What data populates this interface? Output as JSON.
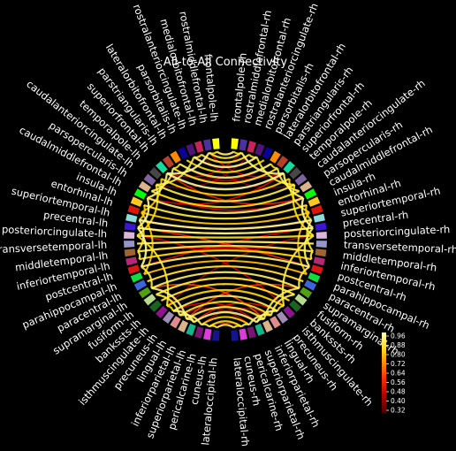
{
  "chart_data": {
    "type": "circular-connectivity",
    "title": "All-to-All Connectivity",
    "nodes_left": [
      "frontalpole-lh",
      "rostralmiddlefrontal-lh",
      "medialorbitofrontal-lh",
      "rostralanteriorcingulate-lh",
      "parsorbitalis-lh",
      "lateralorbitofrontal-lh",
      "parstriangularis-lh",
      "superiorfrontal-lh",
      "temporalpole-lh",
      "caudalanteriorcingulate-lh",
      "parsopercularis-lh",
      "caudalmiddlefrontal-lh",
      "insula-lh",
      "entorhinal-lh",
      "superiortemporal-lh",
      "precentral-lh",
      "posteriorcingulate-lh",
      "transversetemporal-lh",
      "middletemporal-lh",
      "inferiortemporal-lh",
      "postcentral-lh",
      "parahippocampal-lh",
      "paracentral-lh",
      "supramarginal-lh",
      "fusiform-lh",
      "bankssts-lh",
      "isthmuscingulate-lh",
      "precuneus-lh",
      "lingual-lh",
      "inferiorparietal-lh",
      "superiorparietal-lh",
      "pericalcarine-lh",
      "cuneus-lh",
      "lateraloccipital-lh"
    ],
    "nodes_right": [
      "frontalpole-rh",
      "rostralmiddlefrontal-rh",
      "medialorbitofrontal-rh",
      "rostralanteriorcingulate-rh",
      "parsorbitalis-rh",
      "lateralorbitofrontal-rh",
      "parstriangularis-rh",
      "superiorfrontal-rh",
      "temporalpole-rh",
      "caudalanteriorcingulate-rh",
      "parsopercularis-rh",
      "caudalmiddlefrontal-rh",
      "insula-rh",
      "entorhinal-rh",
      "superiortemporal-rh",
      "precentral-rh",
      "posteriorcingulate-rh",
      "transversetemporal-rh",
      "middletemporal-rh",
      "inferiortemporal-rh",
      "postcentral-rh",
      "parahippocampal-rh",
      "paracentral-rh",
      "supramarginal-rh",
      "fusiform-rh",
      "bankssts-rh",
      "isthmuscingulate-rh",
      "precuneus-rh",
      "lingual-rh",
      "inferiorparietal-rh",
      "superiorparietal-rh",
      "pericalcarine-rh",
      "cuneus-rh",
      "lateraloccipital-rh"
    ],
    "node_colors": [
      "#ffff00",
      "#4b32a0",
      "#c8235a",
      "#501478",
      "#0a0096",
      "#ff8c00",
      "#b44028",
      "#14dca0",
      "#464646",
      "#7d64a0",
      "#dcb48c",
      "#00ff00",
      "#ffc820",
      "#dc140a",
      "#8cdcdc",
      "#3c14dc",
      "#dcb4dc",
      "#9696c8",
      "#a06432",
      "#b42878",
      "#dc1414",
      "#14dc3c",
      "#3c64dc",
      "#50a014",
      "#b4dc8c",
      "#19641e",
      "#8c148c",
      "#a08cb4",
      "#e18c8c",
      "#dcb48c",
      "#14b48c",
      "#781478",
      "#dc3cdc",
      "#14148c"
    ],
    "colorbar": {
      "colormap": "hot",
      "ticks": [
        "0.96",
        "0.88",
        "0.80",
        "0.72",
        "0.64",
        "0.56",
        "0.48",
        "0.40",
        "0.32"
      ],
      "vmin": 0.3,
      "vmax": 1.0
    },
    "connections": [
      [
        0,
        34,
        0.92
      ],
      [
        1,
        35,
        0.9
      ],
      [
        2,
        36,
        0.88
      ],
      [
        3,
        37,
        0.95
      ],
      [
        4,
        38,
        0.86
      ],
      [
        5,
        39,
        0.93
      ],
      [
        6,
        40,
        0.89
      ],
      [
        7,
        41,
        0.97
      ],
      [
        8,
        42,
        0.84
      ],
      [
        9,
        43,
        0.91
      ],
      [
        10,
        44,
        0.87
      ],
      [
        11,
        45,
        0.94
      ],
      [
        12,
        46,
        0.9
      ],
      [
        13,
        47,
        0.83
      ],
      [
        14,
        48,
        0.96
      ],
      [
        15,
        49,
        0.95
      ],
      [
        16,
        50,
        0.88
      ],
      [
        17,
        51,
        0.92
      ],
      [
        18,
        52,
        0.91
      ],
      [
        19,
        53,
        0.86
      ],
      [
        20,
        54,
        0.94
      ],
      [
        21,
        55,
        0.82
      ],
      [
        22,
        56,
        0.89
      ],
      [
        23,
        57,
        0.93
      ],
      [
        24,
        58,
        0.9
      ],
      [
        25,
        59,
        0.87
      ],
      [
        26,
        60,
        0.85
      ],
      [
        27,
        61,
        0.92
      ],
      [
        28,
        62,
        0.88
      ],
      [
        29,
        63,
        0.91
      ],
      [
        30,
        64,
        0.95
      ],
      [
        31,
        65,
        0.84
      ],
      [
        32,
        66,
        0.86
      ],
      [
        33,
        67,
        0.9
      ],
      [
        1,
        7,
        0.96
      ],
      [
        7,
        11,
        0.93
      ],
      [
        11,
        15,
        0.95
      ],
      [
        15,
        20,
        0.97
      ],
      [
        20,
        23,
        0.9
      ],
      [
        23,
        29,
        0.94
      ],
      [
        29,
        30,
        0.92
      ],
      [
        30,
        27,
        0.95
      ],
      [
        27,
        26,
        0.86
      ],
      [
        18,
        19,
        0.91
      ],
      [
        14,
        18,
        0.88
      ],
      [
        24,
        28,
        0.9
      ],
      [
        28,
        31,
        0.93
      ],
      [
        31,
        32,
        0.91
      ],
      [
        32,
        33,
        0.89
      ],
      [
        5,
        6,
        0.87
      ],
      [
        6,
        10,
        0.92
      ],
      [
        2,
        3,
        0.88
      ],
      [
        3,
        9,
        0.9
      ],
      [
        9,
        16,
        0.85
      ],
      [
        16,
        26,
        0.89
      ],
      [
        0,
        1,
        0.86
      ],
      [
        12,
        14,
        0.84
      ],
      [
        13,
        21,
        0.83
      ],
      [
        8,
        13,
        0.82
      ],
      [
        35,
        41,
        0.95
      ],
      [
        41,
        45,
        0.94
      ],
      [
        45,
        49,
        0.96
      ],
      [
        49,
        54,
        0.93
      ],
      [
        54,
        57,
        0.91
      ],
      [
        57,
        63,
        0.92
      ],
      [
        63,
        64,
        0.93
      ],
      [
        64,
        61,
        0.94
      ],
      [
        61,
        60,
        0.87
      ],
      [
        52,
        53,
        0.9
      ],
      [
        48,
        52,
        0.89
      ],
      [
        58,
        62,
        0.91
      ],
      [
        62,
        65,
        0.92
      ],
      [
        65,
        66,
        0.9
      ],
      [
        66,
        67,
        0.88
      ],
      [
        39,
        40,
        0.86
      ],
      [
        40,
        44,
        0.91
      ],
      [
        36,
        37,
        0.89
      ],
      [
        37,
        43,
        0.88
      ],
      [
        43,
        50,
        0.86
      ],
      [
        50,
        60,
        0.9
      ],
      [
        34,
        35,
        0.85
      ],
      [
        46,
        48,
        0.84
      ],
      [
        47,
        55,
        0.82
      ],
      [
        42,
        47,
        0.83
      ],
      [
        15,
        49,
        0.78
      ],
      [
        7,
        45,
        0.62
      ],
      [
        11,
        41,
        0.58
      ],
      [
        23,
        63,
        0.66
      ],
      [
        29,
        57,
        0.64
      ],
      [
        30,
        61,
        0.6
      ],
      [
        27,
        64,
        0.57
      ],
      [
        20,
        49,
        0.55
      ],
      [
        15,
        54,
        0.63
      ],
      [
        18,
        53,
        0.52
      ],
      [
        19,
        52,
        0.5
      ],
      [
        33,
        66,
        0.59
      ],
      [
        32,
        67,
        0.54
      ],
      [
        28,
        65,
        0.48
      ],
      [
        31,
        62,
        0.46
      ],
      [
        1,
        41,
        0.51
      ],
      [
        7,
        35,
        0.49
      ],
      [
        17,
        51,
        0.7
      ],
      [
        14,
        48,
        0.68
      ],
      [
        24,
        58,
        0.61
      ],
      [
        16,
        60,
        0.53
      ],
      [
        26,
        50,
        0.47
      ],
      [
        5,
        40,
        0.44
      ],
      [
        6,
        39,
        0.42
      ],
      [
        10,
        45,
        0.56
      ],
      [
        12,
        46,
        0.45
      ],
      [
        3,
        37,
        0.58
      ],
      [
        2,
        43,
        0.41
      ],
      [
        9,
        36,
        0.4
      ],
      [
        25,
        59,
        0.65
      ],
      [
        21,
        55,
        0.43
      ],
      [
        13,
        47,
        0.39
      ],
      [
        0,
        34,
        0.57
      ],
      [
        8,
        42,
        0.38
      ],
      [
        22,
        56,
        0.6
      ]
    ]
  }
}
